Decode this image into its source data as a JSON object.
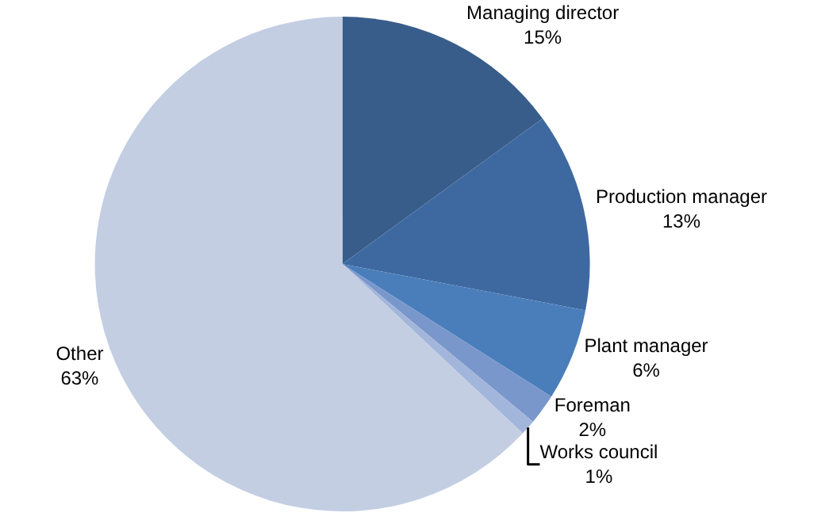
{
  "chart_data": {
    "type": "pie",
    "categories": [
      "Managing director",
      "Production manager",
      "Plant manager",
      "Foreman",
      "Works council",
      "Other"
    ],
    "values": [
      15,
      13,
      6,
      2,
      1,
      63
    ],
    "value_labels": [
      "15%",
      "13%",
      "6%",
      "2%",
      "1%",
      "63%"
    ],
    "colors": [
      "#385d8a",
      "#3e69a0",
      "#4a7ebb",
      "#7a97cb",
      "#a2b5da",
      "#c3cee3"
    ],
    "legend": false
  }
}
